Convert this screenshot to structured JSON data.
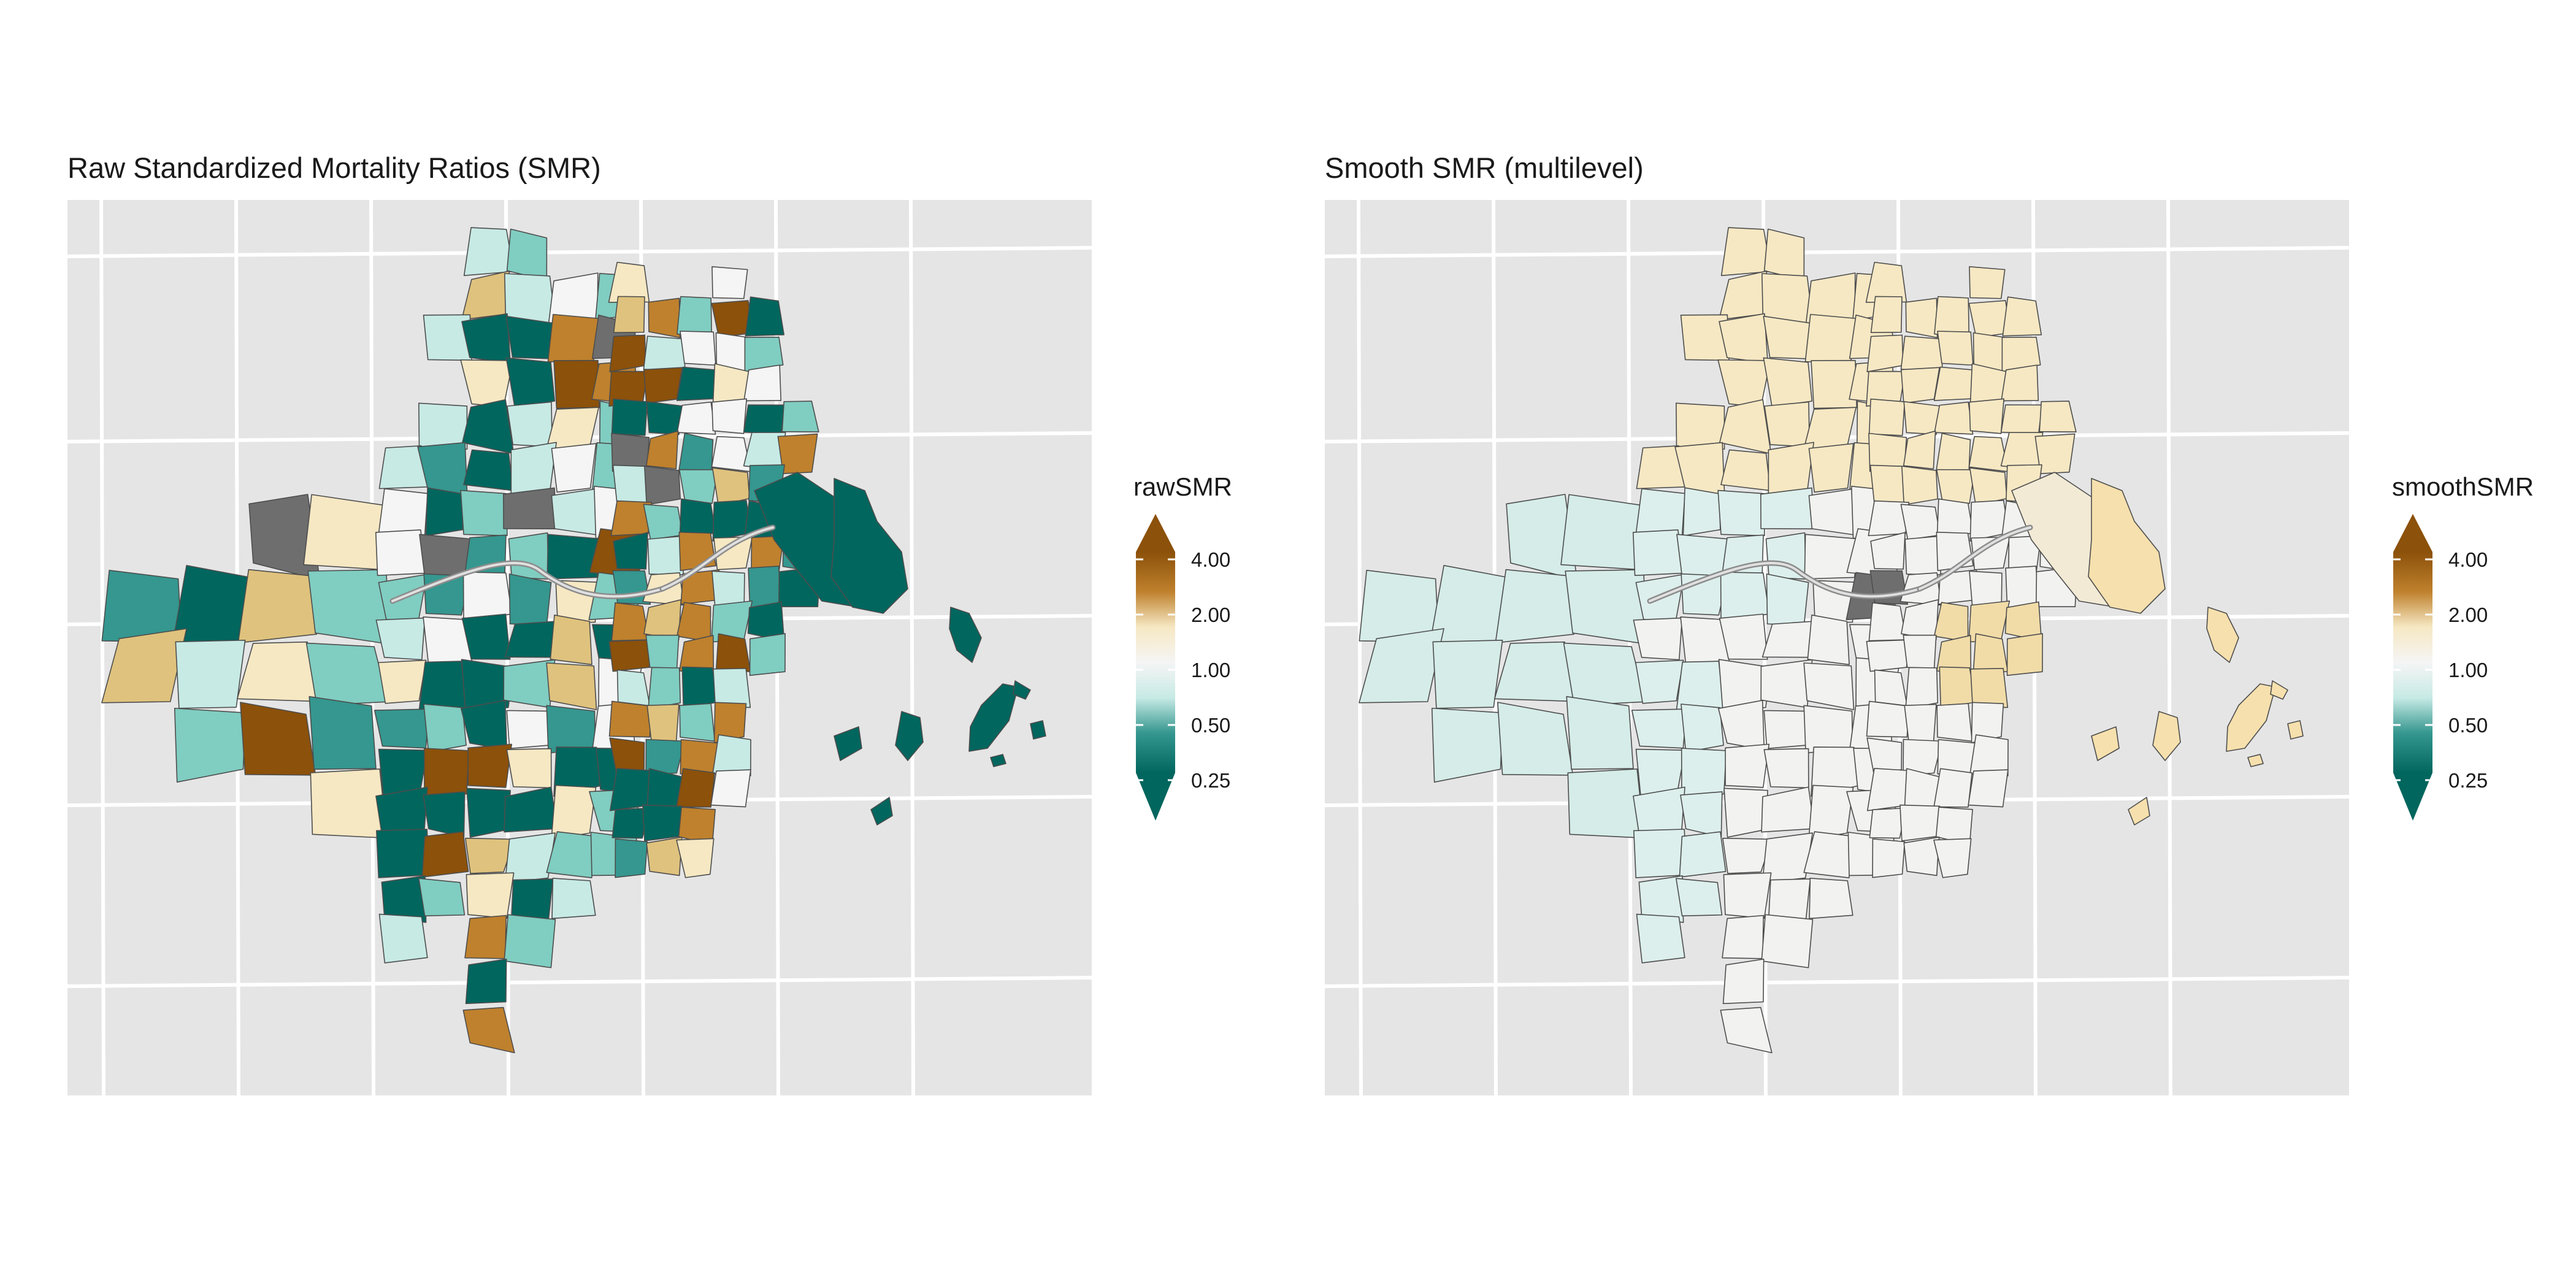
{
  "panels": [
    {
      "title": "Raw Standardized Mortality Ratios (SMR)",
      "legend": {
        "title": "rawSMR",
        "breaks": [
          "4.00",
          "2.00",
          "1.00",
          "0.50",
          "0.25"
        ]
      },
      "variant": "raw"
    },
    {
      "title": "Smooth SMR (multilevel)",
      "legend": {
        "title": "smoothSMR",
        "breaks": [
          "4.00",
          "2.00",
          "1.00",
          "0.50",
          "0.25"
        ]
      },
      "variant": "smooth"
    }
  ],
  "colors": {
    "panel_background": "#e5e5e5",
    "grid": "#ffffff",
    "na": "#6e6e6e",
    "scale_low": "#01665e",
    "scale_mid": "#f5f5f5",
    "scale_high": "#8c510a"
  }
}
